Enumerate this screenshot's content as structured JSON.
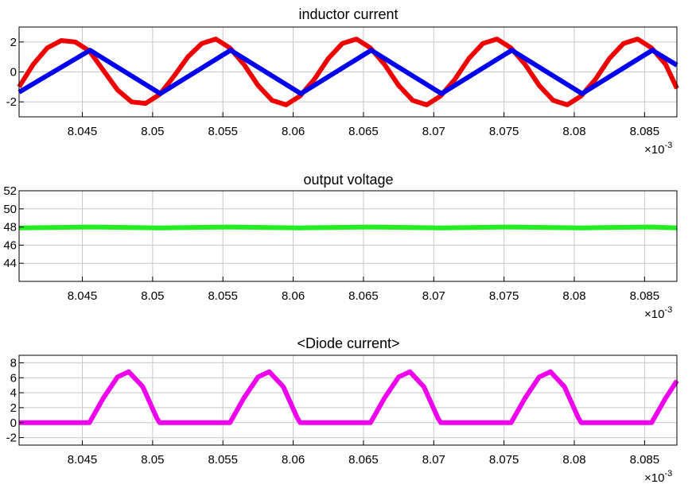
{
  "chart_data": [
    {
      "type": "line",
      "title": "inductor current",
      "xlabel": "",
      "ylabel": "",
      "x_scale_label": "×10",
      "x_scale_exponent": "-3",
      "xlim": [
        8.0405,
        8.0873
      ],
      "ylim": [
        -3,
        3
      ],
      "x_ticks": [
        8.045,
        8.05,
        8.055,
        8.06,
        8.065,
        8.07,
        8.075,
        8.08,
        8.085
      ],
      "x_tick_labels": [
        "8.045",
        "8.05",
        "8.055",
        "8.06",
        "8.065",
        "8.07",
        "8.075",
        "8.08",
        "8.085"
      ],
      "y_ticks": [
        -2,
        0,
        2
      ],
      "y_tick_labels": [
        "-2",
        "0",
        "2"
      ],
      "grid": true,
      "series": [
        {
          "color": "#ee0000",
          "x": [
            8.0405,
            8.0415,
            8.0425,
            8.0435,
            8.0445,
            8.0455,
            8.0465,
            8.0475,
            8.0485,
            8.0495,
            8.0505,
            8.0515,
            8.0525,
            8.0535,
            8.0545,
            8.0555,
            8.0565,
            8.0575,
            8.0585,
            8.0595,
            8.0605,
            8.0615,
            8.0625,
            8.0635,
            8.0645,
            8.0655,
            8.0665,
            8.0675,
            8.0685,
            8.0695,
            8.0705,
            8.0715,
            8.0725,
            8.0735,
            8.0745,
            8.0755,
            8.0765,
            8.0775,
            8.0785,
            8.0795,
            8.0805,
            8.0815,
            8.0825,
            8.0835,
            8.0845,
            8.0855,
            8.0865,
            8.0873
          ],
          "y": [
            -1.0,
            0.5,
            1.6,
            2.1,
            2.0,
            1.4,
            0.1,
            -1.2,
            -2.0,
            -2.1,
            -1.5,
            -0.3,
            1.0,
            1.9,
            2.2,
            1.6,
            0.5,
            -0.9,
            -1.9,
            -2.2,
            -1.6,
            -0.5,
            0.9,
            1.9,
            2.2,
            1.6,
            0.5,
            -0.9,
            -1.9,
            -2.2,
            -1.6,
            -0.5,
            0.9,
            1.9,
            2.2,
            1.6,
            0.5,
            -0.9,
            -1.9,
            -2.2,
            -1.6,
            -0.5,
            0.9,
            1.9,
            2.2,
            1.6,
            0.5,
            -1.1
          ]
        },
        {
          "color": "#0000ee",
          "x": [
            8.0405,
            8.04555,
            8.05055,
            8.05555,
            8.06055,
            8.06555,
            8.07055,
            8.07555,
            8.08055,
            8.08555,
            8.0873
          ],
          "y": [
            -1.35,
            1.45,
            -1.45,
            1.45,
            -1.45,
            1.45,
            -1.45,
            1.45,
            -1.45,
            1.45,
            0.45
          ]
        }
      ]
    },
    {
      "type": "line",
      "title": "output voltage",
      "xlabel": "",
      "ylabel": "",
      "x_scale_label": "×10",
      "x_scale_exponent": "-3",
      "xlim": [
        8.0405,
        8.0873
      ],
      "ylim": [
        42,
        52
      ],
      "x_ticks": [
        8.045,
        8.05,
        8.055,
        8.06,
        8.065,
        8.07,
        8.075,
        8.08,
        8.085
      ],
      "x_tick_labels": [
        "8.045",
        "8.05",
        "8.055",
        "8.06",
        "8.065",
        "8.07",
        "8.075",
        "8.08",
        "8.085"
      ],
      "y_ticks": [
        44,
        46,
        48,
        50,
        52
      ],
      "y_tick_labels": [
        "44",
        "46",
        "48",
        "50",
        "52"
      ],
      "grid": true,
      "series": [
        {
          "color": "#22ee22",
          "x": [
            8.0405,
            8.0455,
            8.0505,
            8.0555,
            8.0605,
            8.0655,
            8.0705,
            8.0755,
            8.0805,
            8.0855,
            8.0873
          ],
          "y": [
            47.9,
            48.0,
            47.9,
            48.0,
            47.9,
            48.0,
            47.9,
            48.0,
            47.9,
            48.0,
            47.9
          ]
        }
      ]
    },
    {
      "type": "line",
      "title": "<Diode current>",
      "xlabel": "",
      "ylabel": "",
      "x_scale_label": "×10",
      "x_scale_exponent": "-3",
      "xlim": [
        8.0405,
        8.0873
      ],
      "ylim": [
        -3,
        9
      ],
      "x_ticks": [
        8.045,
        8.05,
        8.055,
        8.06,
        8.065,
        8.07,
        8.075,
        8.08,
        8.085
      ],
      "x_tick_labels": [
        "8.045",
        "8.05",
        "8.055",
        "8.06",
        "8.065",
        "8.07",
        "8.075",
        "8.08",
        "8.085"
      ],
      "y_ticks": [
        -2,
        0,
        2,
        4,
        6,
        8
      ],
      "y_tick_labels": [
        "-2",
        "0",
        "2",
        "4",
        "6",
        "8"
      ],
      "grid": true,
      "series": [
        {
          "color": "#ee00ee",
          "x": [
            8.0405,
            8.0455,
            8.0465,
            8.0475,
            8.0483,
            8.0493,
            8.0503,
            8.0505,
            8.0555,
            8.0565,
            8.0575,
            8.0583,
            8.0593,
            8.0603,
            8.0605,
            8.0655,
            8.0665,
            8.0675,
            8.0683,
            8.0693,
            8.0703,
            8.0705,
            8.0755,
            8.0765,
            8.0775,
            8.0783,
            8.0793,
            8.0803,
            8.0805,
            8.0855,
            8.0865,
            8.0873
          ],
          "y": [
            0,
            0,
            3.3,
            6.1,
            6.8,
            4.8,
            0.6,
            0,
            0,
            3.3,
            6.1,
            6.8,
            4.8,
            0.6,
            0,
            0,
            3.3,
            6.1,
            6.8,
            4.8,
            0.6,
            0,
            0,
            3.3,
            6.1,
            6.8,
            4.8,
            0.6,
            0,
            0,
            3.3,
            5.6
          ]
        }
      ]
    }
  ]
}
